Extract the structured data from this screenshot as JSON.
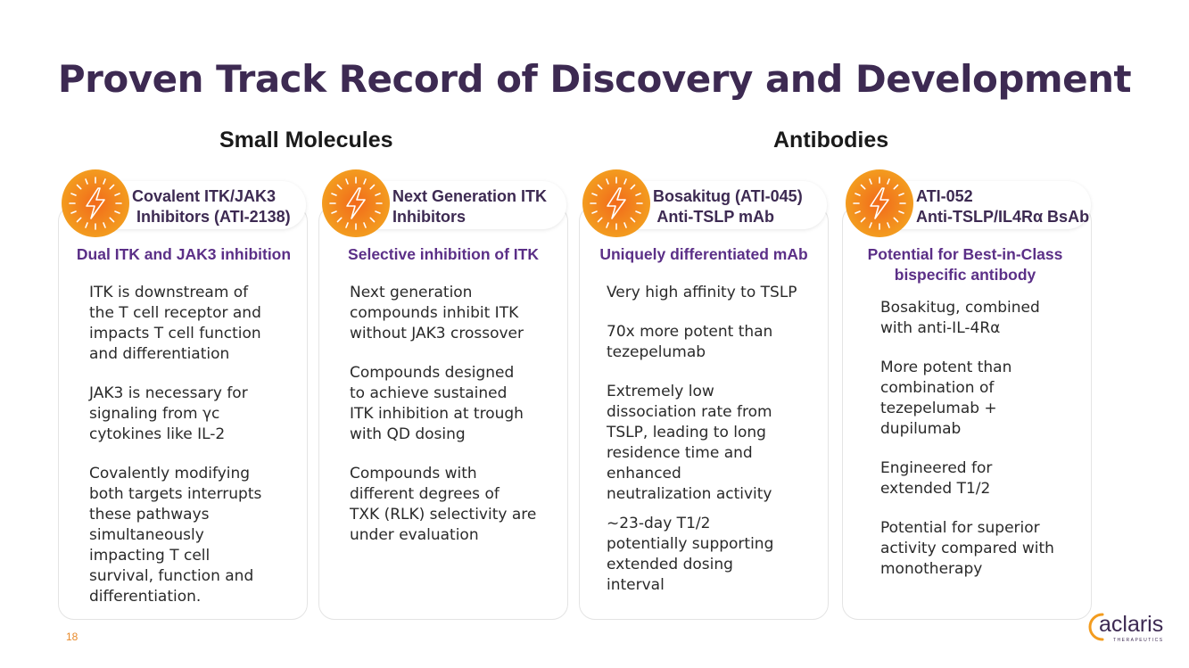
{
  "title": "Proven Track Record of Discovery and Development",
  "sections": {
    "small_molecules": "Small Molecules",
    "antibodies": "Antibodies"
  },
  "cards": [
    {
      "pill": [
        "Covalent ITK/JAK3",
        " Inhibitors (ATI-2138)"
      ],
      "subtitle": "Dual ITK and JAK3 inhibition",
      "bullets": [
        [
          "ITK is downstream of",
          "the T cell receptor and",
          "impacts T cell function",
          "and differentiation"
        ],
        [
          "JAK3 is necessary for",
          "signaling from γc",
          "cytokines like IL-2"
        ],
        [
          "Covalently modifying",
          "both targets interrupts",
          "these pathways",
          "simultaneously",
          "impacting T cell",
          "survival, function and",
          "differentiation."
        ]
      ]
    },
    {
      "pill": [
        "Next Generation ITK",
        "Inhibitors"
      ],
      "subtitle": "Selective inhibition of ITK",
      "bullets": [
        [
          "Next generation",
          "compounds inhibit ITK",
          "without JAK3 crossover"
        ],
        [
          "Compounds designed",
          "to achieve sustained",
          "ITK inhibition at trough",
          "with QD dosing"
        ],
        [
          "Compounds with",
          "different degrees of",
          "TXK (RLK) selectivity are",
          "under evaluation"
        ]
      ]
    },
    {
      "pill": [
        "Bosakitug (ATI-045)",
        " Anti-TSLP mAb"
      ],
      "subtitle": "Uniquely differentiated mAb",
      "bullets": [
        [
          "Very high affinity to TSLP"
        ],
        [
          "70x more potent than",
          "tezepelumab"
        ],
        [
          "Extremely low",
          "dissociation rate from",
          "TSLP, leading to long",
          "residence time and",
          "enhanced",
          "neutralization activity"
        ],
        [
          "~23-day T1/2",
          "potentially supporting",
          "extended dosing",
          "interval"
        ]
      ]
    },
    {
      "pill": [
        "ATI-052",
        "Anti-TSLP/IL4Rα BsAb"
      ],
      "subtitle": [
        "Potential for Best-in-Class",
        "bispecific antibody"
      ],
      "bullets": [
        [
          "Bosakitug, combined",
          "with anti-IL-4Rα"
        ],
        [
          "More potent than",
          "combination of",
          "tezepelumab +",
          "dupilumab"
        ],
        [
          "Engineered for",
          "extended T1/2"
        ],
        [
          "Potential for superior",
          "activity compared with",
          "monotherapy"
        ]
      ]
    }
  ],
  "page_number": "18",
  "logo": {
    "word": "aclaris",
    "tagline": "THERAPEUTICS"
  },
  "colors": {
    "title": "#3d2a52",
    "subtitle": "#5b2f87",
    "badge_outer": "#f39c1f",
    "badge_inner": "#f26a1b",
    "page_number": "#e88a2a"
  }
}
